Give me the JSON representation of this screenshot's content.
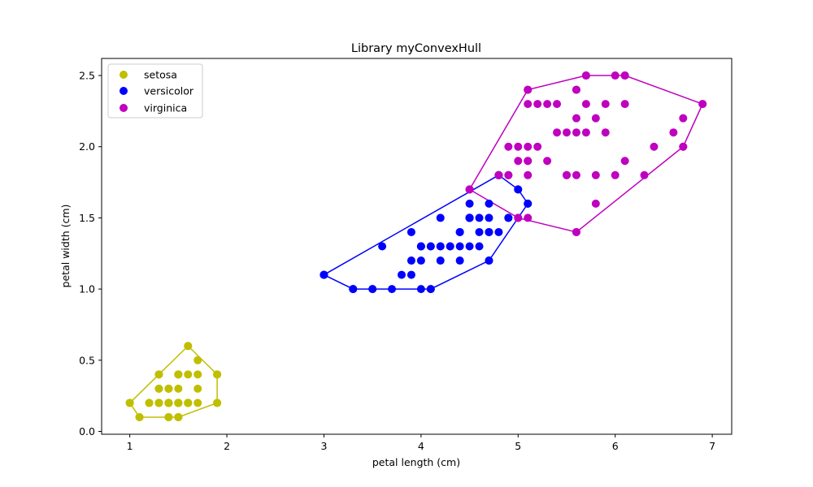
{
  "chart_data": {
    "type": "scatter",
    "title": "Library myConvexHull",
    "xlabel": "petal length (cm)",
    "ylabel": "petal width (cm)",
    "xlim": [
      0.71,
      7.2
    ],
    "ylim": [
      -0.02,
      2.62
    ],
    "xticks": [
      1,
      2,
      3,
      4,
      5,
      6,
      7
    ],
    "yticks": [
      0.0,
      0.5,
      1.0,
      1.5,
      2.0,
      2.5
    ],
    "grid": false,
    "legend_position": "top-left",
    "series": [
      {
        "name": "setosa",
        "color": "#bfbf00",
        "points": [
          [
            1.4,
            0.2
          ],
          [
            1.4,
            0.2
          ],
          [
            1.3,
            0.2
          ],
          [
            1.5,
            0.2
          ],
          [
            1.4,
            0.2
          ],
          [
            1.7,
            0.4
          ],
          [
            1.4,
            0.3
          ],
          [
            1.5,
            0.2
          ],
          [
            1.4,
            0.2
          ],
          [
            1.5,
            0.1
          ],
          [
            1.5,
            0.2
          ],
          [
            1.6,
            0.2
          ],
          [
            1.4,
            0.1
          ],
          [
            1.1,
            0.1
          ],
          [
            1.2,
            0.2
          ],
          [
            1.5,
            0.4
          ],
          [
            1.3,
            0.4
          ],
          [
            1.4,
            0.3
          ],
          [
            1.7,
            0.3
          ],
          [
            1.5,
            0.3
          ],
          [
            1.7,
            0.2
          ],
          [
            1.5,
            0.4
          ],
          [
            1.0,
            0.2
          ],
          [
            1.7,
            0.5
          ],
          [
            1.9,
            0.2
          ],
          [
            1.6,
            0.2
          ],
          [
            1.6,
            0.4
          ],
          [
            1.5,
            0.2
          ],
          [
            1.4,
            0.2
          ],
          [
            1.6,
            0.2
          ],
          [
            1.6,
            0.2
          ],
          [
            1.5,
            0.4
          ],
          [
            1.5,
            0.1
          ],
          [
            1.4,
            0.2
          ],
          [
            1.5,
            0.2
          ],
          [
            1.2,
            0.2
          ],
          [
            1.3,
            0.2
          ],
          [
            1.4,
            0.1
          ],
          [
            1.3,
            0.2
          ],
          [
            1.5,
            0.2
          ],
          [
            1.3,
            0.3
          ],
          [
            1.3,
            0.3
          ],
          [
            1.3,
            0.2
          ],
          [
            1.6,
            0.6
          ],
          [
            1.9,
            0.4
          ],
          [
            1.4,
            0.3
          ],
          [
            1.6,
            0.2
          ],
          [
            1.4,
            0.2
          ],
          [
            1.5,
            0.2
          ],
          [
            1.4,
            0.2
          ]
        ],
        "hull": [
          [
            1.0,
            0.2
          ],
          [
            1.1,
            0.1
          ],
          [
            1.5,
            0.1
          ],
          [
            1.9,
            0.2
          ],
          [
            1.9,
            0.4
          ],
          [
            1.6,
            0.6
          ],
          [
            1.3,
            0.4
          ],
          [
            1.0,
            0.2
          ]
        ]
      },
      {
        "name": "versicolor",
        "color": "#0000ff",
        "points": [
          [
            4.7,
            1.4
          ],
          [
            4.5,
            1.5
          ],
          [
            4.9,
            1.5
          ],
          [
            4.0,
            1.3
          ],
          [
            4.6,
            1.5
          ],
          [
            4.5,
            1.3
          ],
          [
            4.7,
            1.6
          ],
          [
            3.3,
            1.0
          ],
          [
            4.6,
            1.3
          ],
          [
            3.9,
            1.4
          ],
          [
            3.5,
            1.0
          ],
          [
            4.2,
            1.5
          ],
          [
            4.0,
            1.0
          ],
          [
            4.7,
            1.4
          ],
          [
            3.6,
            1.3
          ],
          [
            4.4,
            1.4
          ],
          [
            4.5,
            1.5
          ],
          [
            4.1,
            1.0
          ],
          [
            4.5,
            1.5
          ],
          [
            3.9,
            1.1
          ],
          [
            4.8,
            1.8
          ],
          [
            4.0,
            1.3
          ],
          [
            4.9,
            1.5
          ],
          [
            4.7,
            1.2
          ],
          [
            4.3,
            1.3
          ],
          [
            4.4,
            1.4
          ],
          [
            4.8,
            1.4
          ],
          [
            5.0,
            1.7
          ],
          [
            4.5,
            1.5
          ],
          [
            3.5,
            1.0
          ],
          [
            3.8,
            1.1
          ],
          [
            3.7,
            1.0
          ],
          [
            3.9,
            1.2
          ],
          [
            5.1,
            1.6
          ],
          [
            4.5,
            1.5
          ],
          [
            4.5,
            1.6
          ],
          [
            4.7,
            1.5
          ],
          [
            4.4,
            1.3
          ],
          [
            4.1,
            1.3
          ],
          [
            4.0,
            1.3
          ],
          [
            4.4,
            1.2
          ],
          [
            4.6,
            1.4
          ],
          [
            4.0,
            1.2
          ],
          [
            3.3,
            1.0
          ],
          [
            4.2,
            1.3
          ],
          [
            4.2,
            1.2
          ],
          [
            4.2,
            1.3
          ],
          [
            4.3,
            1.3
          ],
          [
            3.0,
            1.1
          ],
          [
            4.1,
            1.3
          ]
        ],
        "hull": [
          [
            3.0,
            1.1
          ],
          [
            3.3,
            1.0
          ],
          [
            4.1,
            1.0
          ],
          [
            4.7,
            1.2
          ],
          [
            5.1,
            1.6
          ],
          [
            5.0,
            1.7
          ],
          [
            4.8,
            1.8
          ],
          [
            3.0,
            1.1
          ]
        ]
      },
      {
        "name": "virginica",
        "color": "#bf00bf",
        "points": [
          [
            6.0,
            2.5
          ],
          [
            5.1,
            1.9
          ],
          [
            5.9,
            2.1
          ],
          [
            5.6,
            1.8
          ],
          [
            5.8,
            2.2
          ],
          [
            6.6,
            2.1
          ],
          [
            4.5,
            1.7
          ],
          [
            6.3,
            1.8
          ],
          [
            5.8,
            1.8
          ],
          [
            6.1,
            2.5
          ],
          [
            5.1,
            2.0
          ],
          [
            5.3,
            1.9
          ],
          [
            5.5,
            2.1
          ],
          [
            5.0,
            2.0
          ],
          [
            5.1,
            2.4
          ],
          [
            5.3,
            2.3
          ],
          [
            5.5,
            1.8
          ],
          [
            6.7,
            2.2
          ],
          [
            6.9,
            2.3
          ],
          [
            5.0,
            1.5
          ],
          [
            5.7,
            2.3
          ],
          [
            4.9,
            2.0
          ],
          [
            6.7,
            2.0
          ],
          [
            4.9,
            1.8
          ],
          [
            5.7,
            2.1
          ],
          [
            6.0,
            1.8
          ],
          [
            4.8,
            1.8
          ],
          [
            4.9,
            1.8
          ],
          [
            5.6,
            2.1
          ],
          [
            5.8,
            1.6
          ],
          [
            6.1,
            1.9
          ],
          [
            6.4,
            2.0
          ],
          [
            5.6,
            2.2
          ],
          [
            5.1,
            1.5
          ],
          [
            5.6,
            1.4
          ],
          [
            6.1,
            2.3
          ],
          [
            5.6,
            2.4
          ],
          [
            5.5,
            1.8
          ],
          [
            4.8,
            1.8
          ],
          [
            5.4,
            2.1
          ],
          [
            5.6,
            2.4
          ],
          [
            5.1,
            2.3
          ],
          [
            5.1,
            1.9
          ],
          [
            5.9,
            2.3
          ],
          [
            5.7,
            2.5
          ],
          [
            5.2,
            2.3
          ],
          [
            5.0,
            1.9
          ],
          [
            5.2,
            2.0
          ],
          [
            5.4,
            2.3
          ],
          [
            5.1,
            1.8
          ]
        ],
        "hull": [
          [
            4.5,
            1.7
          ],
          [
            5.0,
            1.5
          ],
          [
            5.6,
            1.4
          ],
          [
            6.7,
            2.0
          ],
          [
            6.9,
            2.3
          ],
          [
            6.1,
            2.5
          ],
          [
            5.7,
            2.5
          ],
          [
            5.1,
            2.4
          ],
          [
            4.5,
            1.7
          ]
        ]
      }
    ]
  }
}
